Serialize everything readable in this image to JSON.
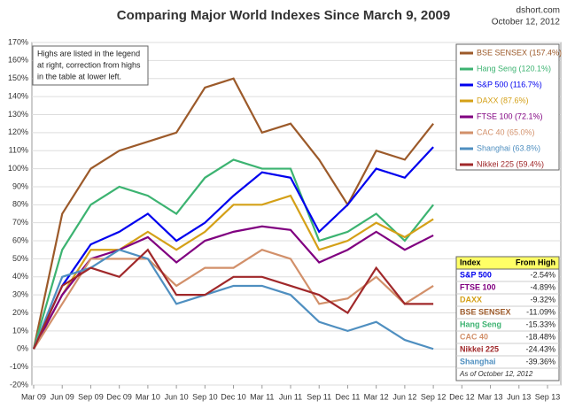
{
  "chart_data": {
    "type": "line",
    "title": "Comparing Major World Indexes Since March 9, 2009",
    "source": "dshort.com",
    "date": "October 12, 2012",
    "annotation": [
      "Highs are listed in the legend",
      "at right, correction from highs",
      "in the table at lower left."
    ],
    "x": [
      "Mar 09",
      "Jun 09",
      "Sep 09",
      "Dec 09",
      "Mar 10",
      "Jun 10",
      "Sep 10",
      "Dec 10",
      "Mar 11",
      "Jun 11",
      "Sep 11",
      "Dec 11",
      "Mar 12",
      "Jun 12",
      "Sep 12",
      "Dec 12",
      "Mar 13",
      "Jun 13",
      "Sep 13"
    ],
    "ylim": [
      -20,
      170
    ],
    "yticks": [
      {
        "value": -20,
        "label": "-20%"
      },
      {
        "value": -10,
        "label": "-10%"
      },
      {
        "value": 0,
        "label": "0%"
      },
      {
        "value": 10,
        "label": "10%"
      },
      {
        "value": 20,
        "label": "20%"
      },
      {
        "value": 30,
        "label": "30%"
      },
      {
        "value": 40,
        "label": "40%"
      },
      {
        "value": 50,
        "label": "50%"
      },
      {
        "value": 60,
        "label": "60%"
      },
      {
        "value": 70,
        "label": "70%"
      },
      {
        "value": 80,
        "label": "80%"
      },
      {
        "value": 90,
        "label": "90%"
      },
      {
        "value": 100,
        "label": "100%"
      },
      {
        "value": 110,
        "label": "110%"
      },
      {
        "value": 120,
        "label": "120%"
      },
      {
        "value": 130,
        "label": "130%"
      },
      {
        "value": 140,
        "label": "140%"
      },
      {
        "value": 150,
        "label": "150%"
      },
      {
        "value": 160,
        "label": "160%"
      },
      {
        "value": 170,
        "label": "170%"
      }
    ],
    "grid": true,
    "series": [
      {
        "name": "BSE SENSEX (157.4%)",
        "color": "#9c5a2a",
        "values": [
          0,
          75,
          100,
          110,
          115,
          120,
          145,
          150,
          120,
          125,
          105,
          80,
          110,
          105,
          125,
          null,
          null,
          null,
          null
        ]
      },
      {
        "name": "Hang Seng (120.1%)",
        "color": "#3cb371",
        "values": [
          0,
          55,
          80,
          90,
          85,
          75,
          95,
          105,
          100,
          100,
          60,
          65,
          75,
          60,
          80,
          null,
          null,
          null,
          null
        ]
      },
      {
        "name": "S&P 500 (116.7%)",
        "color": "#0000ee",
        "values": [
          0,
          35,
          58,
          65,
          75,
          60,
          70,
          85,
          98,
          95,
          65,
          80,
          100,
          95,
          112,
          null,
          null,
          null,
          null
        ]
      },
      {
        "name": "DAXX (87.6%)",
        "color": "#d4a017",
        "values": [
          0,
          30,
          55,
          55,
          65,
          55,
          65,
          80,
          80,
          85,
          55,
          60,
          70,
          62,
          72,
          null,
          null,
          null,
          null
        ]
      },
      {
        "name": "FTSE 100 (72.1%)",
        "color": "#800080",
        "values": [
          0,
          30,
          50,
          55,
          62,
          48,
          60,
          65,
          68,
          66,
          48,
          55,
          65,
          55,
          63,
          null,
          null,
          null,
          null
        ]
      },
      {
        "name": "CAC 40 (65.0%)",
        "color": "#d2906a",
        "values": [
          0,
          25,
          50,
          50,
          50,
          35,
          45,
          45,
          55,
          50,
          25,
          28,
          40,
          25,
          35,
          null,
          null,
          null,
          null
        ]
      },
      {
        "name": "Shanghai (63.8%)",
        "color": "#4f8fc0",
        "values": [
          0,
          40,
          45,
          55,
          50,
          25,
          30,
          35,
          35,
          30,
          15,
          10,
          15,
          5,
          0,
          null,
          null,
          null,
          null
        ]
      },
      {
        "name": "Nikkei 225 (59.4%)",
        "color": "#a0282a",
        "values": [
          0,
          35,
          45,
          40,
          55,
          30,
          30,
          40,
          40,
          35,
          30,
          20,
          45,
          25,
          25,
          null,
          null,
          null,
          null
        ]
      }
    ],
    "table": {
      "header": [
        "Index",
        "From High"
      ],
      "rows": [
        [
          "S&P 500",
          "-2.54%"
        ],
        [
          "FTSE 100",
          "-4.89%"
        ],
        [
          "DAXX",
          "-9.32%"
        ],
        [
          "BSE SENSEX",
          "-11.09%"
        ],
        [
          "Hang Seng",
          "-15.33%"
        ],
        [
          "CAC 40",
          "-18.48%"
        ],
        [
          "Nikkei 225",
          "-24.43%"
        ],
        [
          "Shanghai",
          "-39.36%"
        ]
      ],
      "colors": [
        "#0000ee",
        "#800080",
        "#d4a017",
        "#9c5a2a",
        "#3cb371",
        "#d2906a",
        "#a0282a",
        "#4f8fc0"
      ],
      "note": "As of October 12, 2012"
    }
  }
}
